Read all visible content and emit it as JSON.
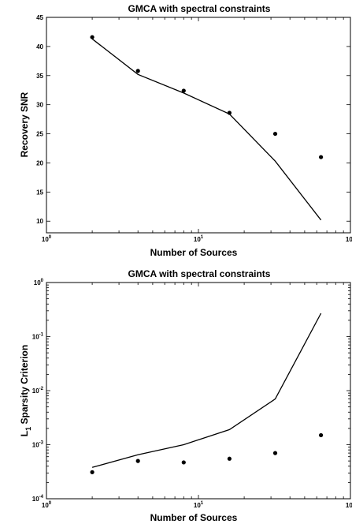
{
  "chart_data": [
    {
      "type": "line",
      "title": "GMCA with spectral constraints",
      "xlabel": "Number of Sources",
      "ylabel": "Recovery SNR",
      "xscale": "log",
      "yscale": "linear",
      "xlim": [
        1,
        100
      ],
      "ylim": [
        8,
        45
      ],
      "xticks": [
        1,
        10,
        100
      ],
      "xtick_labels": [
        [
          "10",
          "0"
        ],
        [
          "10",
          "1"
        ],
        [
          "10",
          "2"
        ]
      ],
      "yticks": [
        10,
        15,
        20,
        25,
        30,
        35,
        40,
        45
      ],
      "ytick_labels": [
        "10",
        "15",
        "20",
        "25",
        "30",
        "35",
        "40",
        "45"
      ],
      "grid": false,
      "series": [
        {
          "style": "line",
          "x": [
            2,
            4,
            8,
            16,
            32,
            64
          ],
          "y": [
            41.3,
            35.2,
            32.0,
            28.4,
            20.3,
            10.2
          ]
        },
        {
          "style": "markers",
          "x": [
            2,
            4,
            8,
            16,
            32,
            64
          ],
          "y": [
            41.6,
            35.8,
            32.4,
            28.6,
            25.0,
            21.0
          ]
        }
      ]
    },
    {
      "type": "line",
      "title": "GMCA with spectral constraints",
      "xlabel": "Number of Sources",
      "ylabel": "L",
      "ylabel_sub": "1",
      "ylabel_rest": " Sparsity Criterion",
      "xscale": "log",
      "yscale": "log",
      "xlim": [
        1,
        100
      ],
      "ylim": [
        0.0001,
        1
      ],
      "xticks": [
        1,
        10,
        100
      ],
      "xtick_labels": [
        [
          "10",
          "0"
        ],
        [
          "10",
          "1"
        ],
        [
          "10",
          "2"
        ]
      ],
      "yticks": [
        0.0001,
        0.001,
        0.01,
        0.1,
        1
      ],
      "ytick_labels": [
        [
          "10",
          "-4"
        ],
        [
          "10",
          "-3"
        ],
        [
          "10",
          "-2"
        ],
        [
          "10",
          "-1"
        ],
        [
          "10",
          "0"
        ]
      ],
      "grid": false,
      "series": [
        {
          "style": "line",
          "x": [
            2,
            4,
            8,
            16,
            32,
            64
          ],
          "y": [
            0.00038,
            0.00065,
            0.001,
            0.0019,
            0.007,
            0.27
          ]
        },
        {
          "style": "markers",
          "x": [
            2,
            4,
            8,
            16,
            32,
            64
          ],
          "y": [
            0.00031,
            0.0005,
            0.00047,
            0.00055,
            0.0007,
            0.0015
          ]
        }
      ]
    }
  ]
}
